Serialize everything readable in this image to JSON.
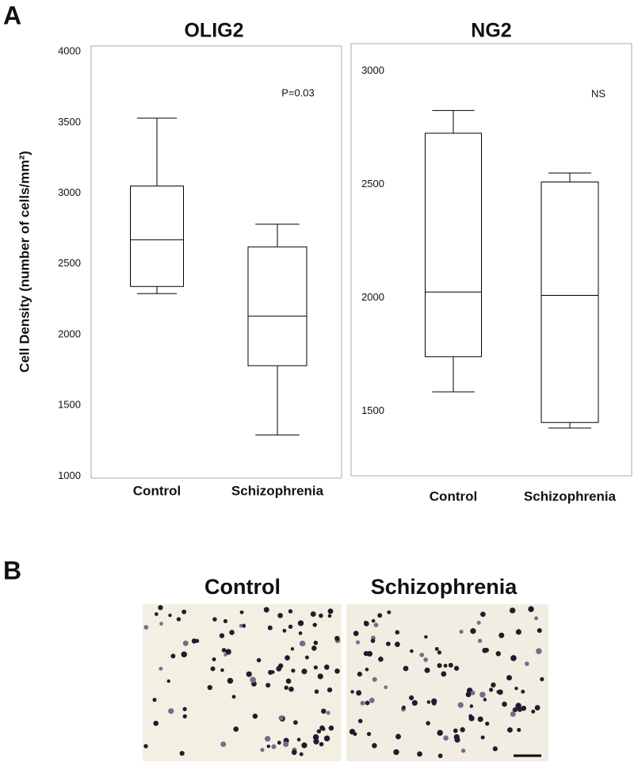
{
  "panel_a_label": "A",
  "panel_b_label": "B",
  "chart_data": [
    {
      "type": "box",
      "title": "OLIG2",
      "y_label": "Cell Density (number of cells/mm²)",
      "annotation": "P=0.03",
      "categories": [
        "Control",
        "Schizophrenia"
      ],
      "boxes": [
        {
          "min": 2290,
          "q1": 2340,
          "median": 2670,
          "q3": 3050,
          "max": 3530
        },
        {
          "min": 1290,
          "q1": 1780,
          "median": 2130,
          "q3": 2620,
          "max": 2780
        }
      ],
      "ylim": [
        985,
        4040
      ],
      "yticks": [
        1000,
        1500,
        2000,
        2500,
        3000,
        3500,
        4000
      ]
    },
    {
      "type": "box",
      "title": "NG2",
      "annotation": "NS",
      "categories": [
        "Control",
        "Schizophrenia"
      ],
      "boxes": [
        {
          "min": 1585,
          "q1": 1740,
          "median": 2025,
          "q3": 2725,
          "max": 2825
        },
        {
          "min": 1425,
          "q1": 1450,
          "median": 2010,
          "q3": 2510,
          "max": 2550
        }
      ],
      "ylim": [
        1215,
        3120
      ],
      "yticks": [
        1500,
        2000,
        2500,
        3000
      ]
    }
  ],
  "micrographs": [
    {
      "title": "Control"
    },
    {
      "title": "Schizophrenia"
    }
  ]
}
